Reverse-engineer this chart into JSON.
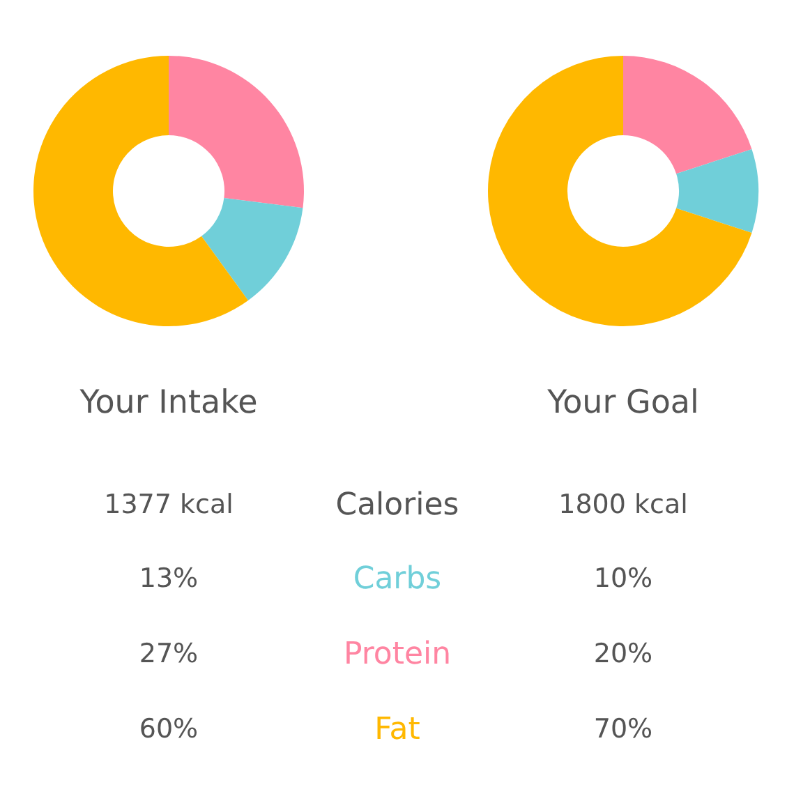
{
  "chart_data": [
    {
      "type": "donut",
      "title": "Your Intake",
      "categories": [
        null,
        null,
        null
      ],
      "values": [
        13,
        27,
        60
      ],
      "colors": [
        "#70cfd9",
        "#ff85a2",
        "#ffb800"
      ]
    },
    {
      "type": "donut",
      "title": "Your Goal",
      "categories": [
        null,
        null,
        null
      ],
      "values": [
        10,
        20,
        70
      ],
      "colors": [
        "#70cfd9",
        "#ff85a2",
        "#ffb800"
      ]
    },
    {
      "type": "other",
      "annotations": [
        "1377 kcal",
        "Calories",
        "1800 kcal",
        "13%",
        "Carbs",
        "10%",
        "27%",
        "Protein",
        "20%",
        "60%",
        "Fat",
        "70%"
      ]
    }
  ]
}
